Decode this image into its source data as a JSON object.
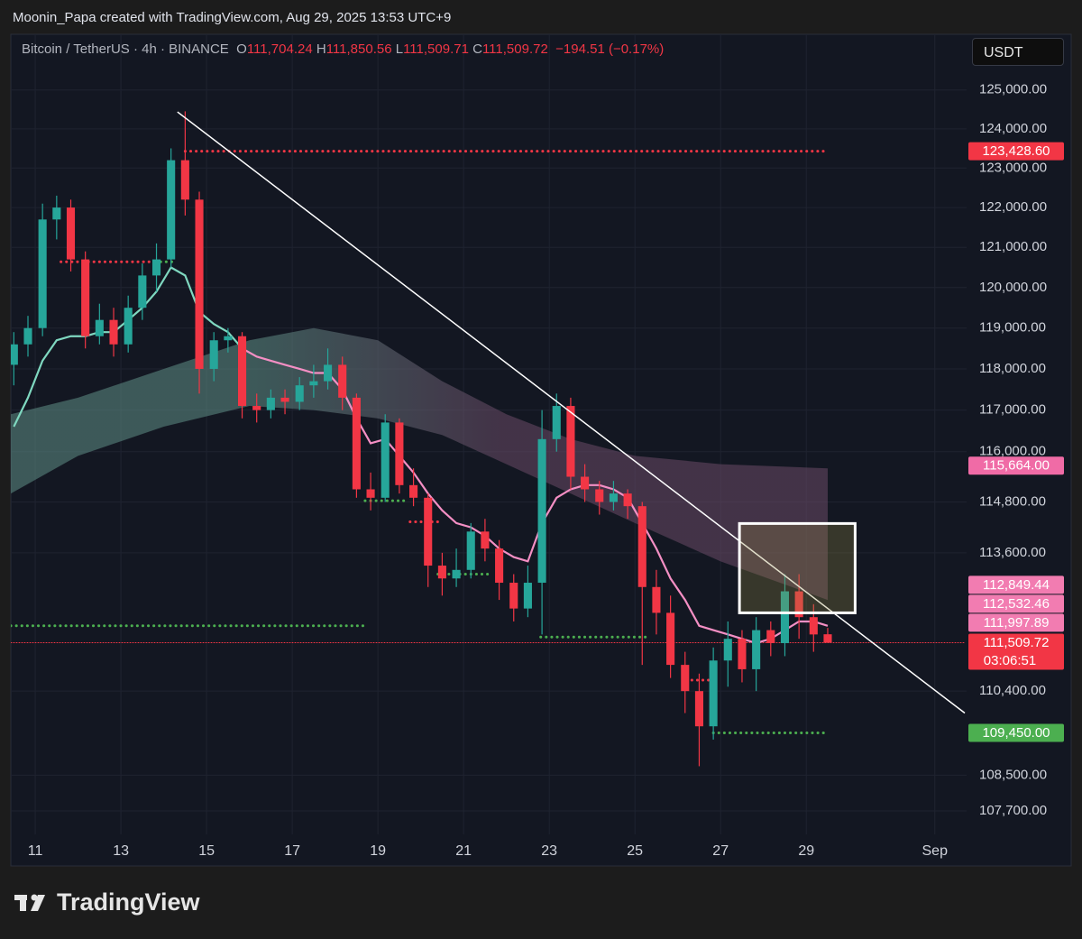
{
  "header": {
    "attribution": "Moonin_Papa created with TradingView.com, Aug 29, 2025 13:53 UTC+9"
  },
  "chart_data": {
    "type": "candlestick",
    "title": "Bitcoin / TetherUS · 4h · BINANCE",
    "ohlc_legend": [
      {
        "key": "O",
        "value": "111,704.24"
      },
      {
        "key": "H",
        "value": "111,850.56"
      },
      {
        "key": "L",
        "value": "111,509.71"
      },
      {
        "key": "C",
        "value": "111,509.72"
      }
    ],
    "change": "−194.51 (−0.17%)",
    "currency": "USDT",
    "x": [
      10.5,
      10.83,
      11.17,
      11.5,
      11.83,
      12.17,
      12.5,
      12.83,
      13.17,
      13.5,
      13.83,
      14.17,
      14.5,
      14.83,
      15.17,
      15.5,
      15.83,
      16.17,
      16.5,
      16.83,
      17.17,
      17.5,
      17.83,
      18.17,
      18.5,
      18.83,
      19.17,
      19.5,
      19.83,
      20.17,
      20.5,
      20.83,
      21.17,
      21.5,
      21.83,
      22.17,
      22.5,
      22.83,
      23.17,
      23.5,
      23.83,
      24.17,
      24.5,
      24.83,
      25.17,
      25.5,
      25.83,
      26.17,
      26.5,
      26.83,
      27.17,
      27.5,
      27.83,
      28.17,
      28.5,
      28.83,
      29.17,
      29.5
    ],
    "open": [
      118100,
      118600,
      119000,
      121700,
      122000,
      120700,
      118800,
      119200,
      118600,
      119500,
      120300,
      120700,
      123200,
      122200,
      118000,
      118700,
      118800,
      117100,
      117000,
      117300,
      117200,
      117600,
      117700,
      118100,
      117300,
      115100,
      114900,
      116700,
      115200,
      114900,
      113300,
      113000,
      113200,
      114100,
      113700,
      112900,
      112300,
      112900,
      116300,
      117100,
      115400,
      115100,
      114800,
      115000,
      114700,
      112800,
      112200,
      111000,
      110400,
      109600,
      111100,
      111600,
      110900,
      111800,
      111500,
      112700,
      112100,
      111704.24
    ],
    "high": [
      118900,
      119300,
      122100,
      122300,
      122200,
      120900,
      119600,
      119500,
      119800,
      120600,
      121100,
      123500,
      124450,
      122400,
      118900,
      119000,
      118900,
      117400,
      117500,
      117500,
      117800,
      118100,
      118500,
      118300,
      117400,
      115500,
      116900,
      116800,
      115600,
      115000,
      113600,
      113700,
      114300,
      114400,
      113900,
      113100,
      113300,
      117000,
      117400,
      117300,
      115700,
      115300,
      115300,
      115100,
      114800,
      113200,
      112600,
      111300,
      110800,
      111400,
      112000,
      111800,
      112100,
      112000,
      113100,
      113100,
      112400,
      111850.56
    ],
    "low": [
      117600,
      118300,
      118800,
      121200,
      120400,
      118500,
      118600,
      118300,
      118400,
      119200,
      119900,
      120500,
      121800,
      117400,
      117700,
      118400,
      116800,
      116700,
      116800,
      116900,
      117000,
      117300,
      117500,
      117000,
      114900,
      114600,
      114800,
      115000,
      114700,
      112800,
      112600,
      112800,
      113000,
      113400,
      112500,
      112000,
      112100,
      111700,
      116000,
      115100,
      114800,
      114500,
      114600,
      114400,
      111000,
      111700,
      110700,
      109900,
      108700,
      109300,
      110500,
      110600,
      110400,
      111200,
      111200,
      111600,
      111300,
      111509.71
    ],
    "close": [
      118600,
      119000,
      121700,
      122000,
      120700,
      118800,
      119200,
      118600,
      119500,
      120300,
      120700,
      123200,
      122200,
      118000,
      118700,
      118800,
      117100,
      117000,
      117300,
      117200,
      117600,
      117700,
      118100,
      117300,
      115100,
      114900,
      116700,
      115200,
      114900,
      113300,
      113000,
      113200,
      114100,
      113700,
      112900,
      112300,
      112900,
      116300,
      117100,
      115400,
      115100,
      114800,
      115000,
      114700,
      112800,
      112200,
      111000,
      110400,
      109600,
      111100,
      111600,
      110900,
      111800,
      111500,
      112700,
      112100,
      111700,
      111509.72
    ],
    "up_color": "#26a69a",
    "down_color": "#f23645",
    "xlim": [
      10.43,
      32.7
    ],
    "xticks": [
      11,
      13,
      15,
      17,
      19,
      21,
      23,
      25,
      27,
      29,
      {
        "value": 32,
        "label": "Sep"
      }
    ],
    "ylim": [
      107180,
      126400
    ],
    "log_scale": true,
    "yticks": [
      {
        "value": 125000,
        "label": "125,000.00"
      },
      {
        "value": 124000,
        "label": "124,000.00"
      },
      {
        "value": 123000,
        "label": "123,000.00"
      },
      {
        "value": 122000,
        "label": "122,000.00"
      },
      {
        "value": 121000,
        "label": "121,000.00"
      },
      {
        "value": 120000,
        "label": "120,000.00"
      },
      {
        "value": 119000,
        "label": "119,000.00"
      },
      {
        "value": 118000,
        "label": "118,000.00"
      },
      {
        "value": 117000,
        "label": "117,000.00"
      },
      {
        "value": 116000,
        "label": "116,000.00"
      },
      {
        "value": 114800,
        "label": "114,800.00"
      },
      {
        "value": 113600,
        "label": "113,600.00"
      },
      {
        "value": 110400,
        "label": "110,400.00"
      },
      {
        "value": 108500,
        "label": "108,500.00"
      },
      {
        "value": 107700,
        "label": "107,700.00"
      }
    ],
    "grid": true,
    "lines": [
      {
        "color": "#7fd8c0",
        "values": [
          116600,
          117300,
          118200,
          118700,
          118800,
          118800,
          118900,
          118900,
          119200,
          119500,
          119900,
          120500,
          120300,
          119400,
          119100,
          118900,
          118500,
          null,
          null,
          null,
          null,
          null,
          null,
          null,
          null,
          null,
          null,
          null,
          null,
          null,
          null,
          null,
          null,
          null,
          null,
          null,
          null,
          null,
          null,
          null,
          null,
          null,
          null,
          null,
          null,
          null,
          null,
          null,
          null,
          null,
          null,
          null,
          null,
          null,
          null,
          null,
          null,
          null
        ]
      },
      {
        "color": "#f48fc4",
        "values": [
          null,
          null,
          null,
          null,
          null,
          null,
          null,
          null,
          null,
          null,
          null,
          null,
          null,
          null,
          null,
          null,
          118500,
          118300,
          118200,
          118100,
          118000,
          117900,
          117900,
          117500,
          116800,
          116200,
          116300,
          115900,
          115500,
          115000,
          114600,
          114300,
          114200,
          114000,
          113700,
          113500,
          113400,
          114300,
          114900,
          115100,
          115200,
          115200,
          115100,
          114900,
          114300,
          113700,
          113000,
          112500,
          111900,
          111800,
          111700,
          111600,
          111500,
          111600,
          111800,
          112000,
          112000,
          111900
        ]
      }
    ],
    "cloud": {
      "x": [
        10.43,
        12,
        14,
        16,
        17.5,
        19,
        20.5,
        22,
        23.5,
        25,
        27,
        29.5
      ],
      "upper": [
        116900,
        117300,
        118000,
        118700,
        119000,
        118700,
        117700,
        116900,
        116300,
        115900,
        115700,
        115600
      ],
      "lower": [
        115000,
        115900,
        116600,
        117100,
        117000,
        116800,
        116400,
        115700,
        115000,
        114300,
        113400,
        112500
      ],
      "colors": [
        "#5f8f86",
        "#6a4a66"
      ]
    },
    "trendline": {
      "x": [
        14.32,
        32.7
      ],
      "y": [
        124435,
        109900
      ],
      "color": "#ffffff"
    },
    "box": {
      "x": [
        27.44,
        30.14
      ],
      "y": [
        112200,
        114290
      ]
    },
    "levels": [
      {
        "value": 123428.6,
        "x": [
          14.5,
          29.5
        ],
        "color": "#f23645"
      },
      {
        "value": 120640,
        "x": [
          11.6,
          13.8
        ],
        "color": "#f23645"
      },
      {
        "value": 120640,
        "x": [
          13.8,
          14.3
        ],
        "color": "#4caf50"
      },
      {
        "value": 111900,
        "x": [
          10.43,
          18.7
        ],
        "color": "#4caf50"
      },
      {
        "value": 114830,
        "x": [
          18.7,
          19.65
        ],
        "color": "#4caf50"
      },
      {
        "value": 114330,
        "x": [
          19.75,
          20.5
        ],
        "color": "#f23645"
      },
      {
        "value": 113100,
        "x": [
          20.4,
          21.6
        ],
        "color": "#4caf50"
      },
      {
        "value": 111640,
        "x": [
          22.8,
          25.3
        ],
        "color": "#4caf50"
      },
      {
        "value": 110650,
        "x": [
          26.2,
          26.9
        ],
        "color": "#f23645"
      },
      {
        "value": 109450,
        "x": [
          26.83,
          29.5
        ],
        "color": "#4caf50"
      },
      {
        "value": 111509.72,
        "color": "#f23645",
        "style": "thin"
      }
    ],
    "price_tags": [
      {
        "value": 123428.6,
        "label": "123,428.60",
        "color": "#f23645"
      },
      {
        "value": 115664,
        "label": "115,664.00",
        "color": "#f06ba6"
      },
      {
        "value": 112849.44,
        "label": "112,849.44",
        "color": "#f27cb1"
      },
      {
        "value": 112532.46,
        "label": "112,532.46",
        "color": "#f27cb1"
      },
      {
        "value": 111997.89,
        "label": "111,997.89",
        "color": "#f27cb1"
      },
      {
        "value": 111509.72,
        "label": "111,509.72",
        "countdown": "03:06:51",
        "color": "#f23645"
      },
      {
        "value": 109450,
        "label": "109,450.00",
        "color": "#4caf50"
      }
    ]
  },
  "footer": {
    "logo": "TradingView"
  }
}
